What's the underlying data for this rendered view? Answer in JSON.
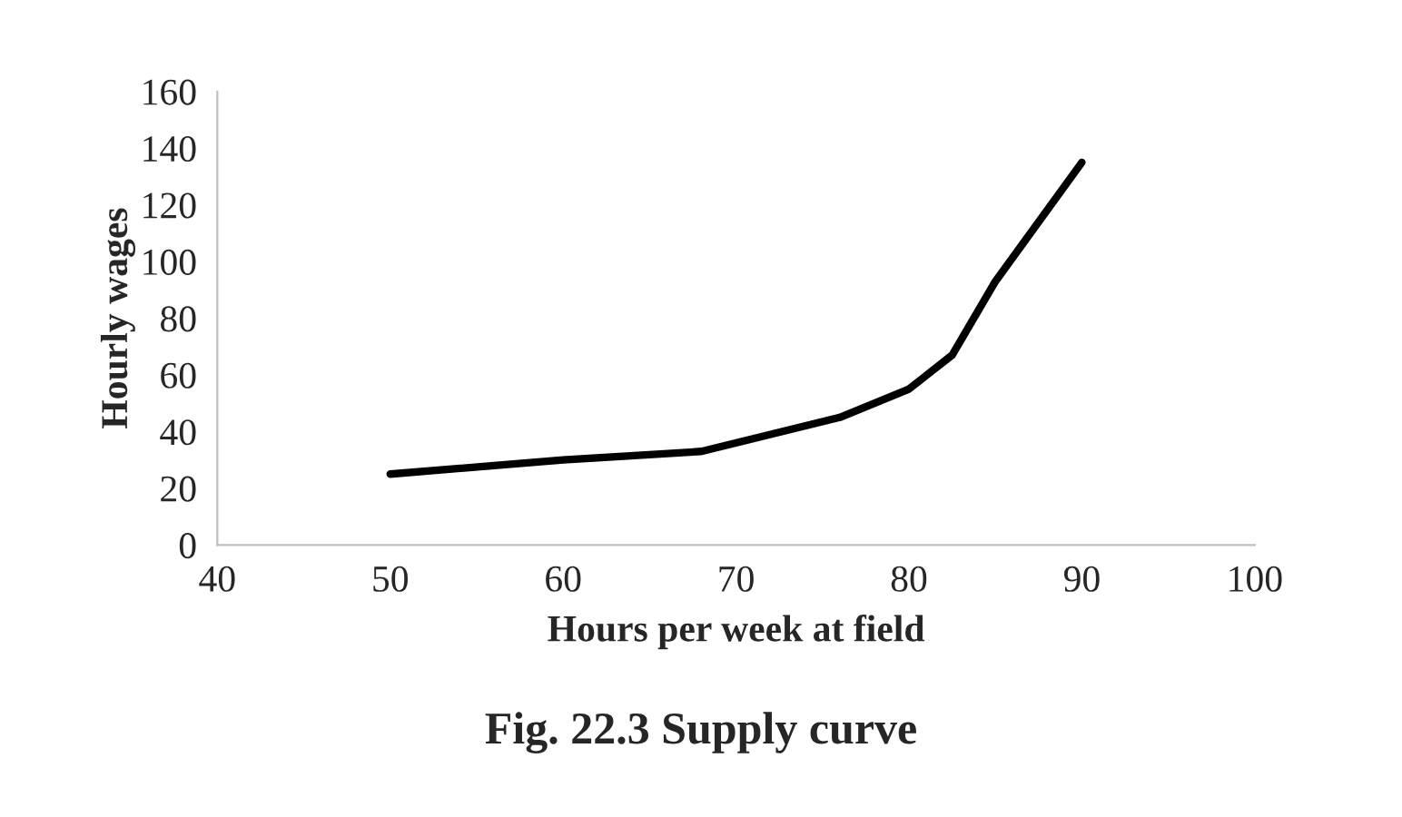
{
  "chart_data": {
    "type": "line",
    "title": "Fig. 22.3 Supply curve",
    "xlabel": "Hours per week at field",
    "ylabel": "Hourly wages",
    "x": [
      50,
      60,
      68,
      76,
      80,
      82.5,
      85,
      90
    ],
    "series": [
      {
        "color": "#000000",
        "values": [
          25,
          30,
          33,
          45,
          55,
          67,
          93,
          135
        ]
      }
    ],
    "xlim": [
      40,
      100
    ],
    "xticks": [
      40,
      50,
      60,
      70,
      80,
      90,
      100
    ],
    "ylim": [
      0,
      160
    ],
    "yticks": [
      0,
      20,
      40,
      60,
      80,
      100,
      120,
      140,
      160
    ],
    "grid": false,
    "marker": "none",
    "line_style": "solid"
  }
}
